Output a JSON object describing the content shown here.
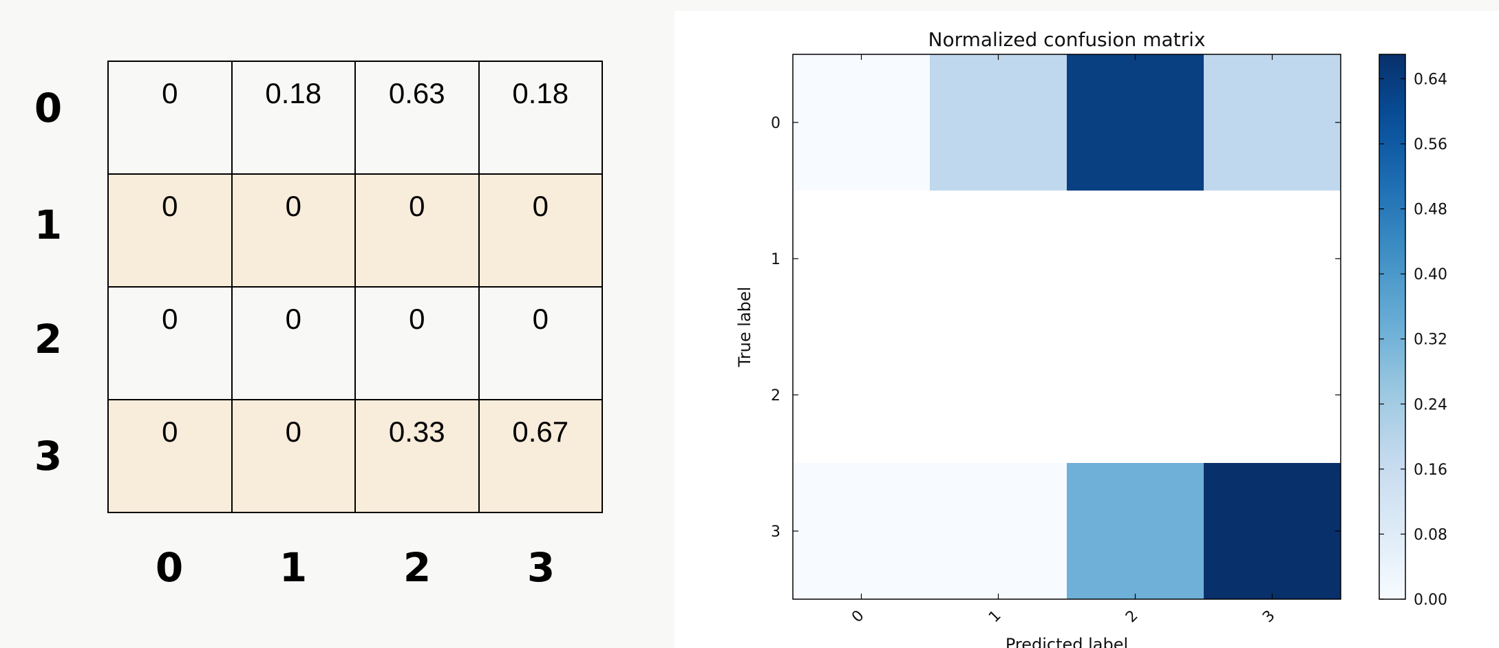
{
  "table": {
    "row_labels": [
      "0",
      "1",
      "2",
      "3"
    ],
    "col_labels": [
      "0",
      "1",
      "2",
      "3"
    ],
    "rows": [
      [
        "0",
        "0.18",
        "0.63",
        "0.18"
      ],
      [
        "0",
        "0",
        "0",
        "0"
      ],
      [
        "0",
        "0",
        "0",
        "0"
      ],
      [
        "0",
        "0",
        "0.33",
        "0.67"
      ]
    ],
    "row_tint_color": "#f8ecda",
    "row_plain_color": "#f8f8f7"
  },
  "chart_data": {
    "type": "heatmap",
    "title": "Normalized confusion matrix",
    "xlabel": "Predicted label",
    "ylabel": "True label",
    "x_categories": [
      "0",
      "1",
      "2",
      "3"
    ],
    "y_categories": [
      "0",
      "1",
      "2",
      "3"
    ],
    "values": [
      [
        0,
        0.18,
        0.63,
        0.18
      ],
      [
        null,
        null,
        null,
        null
      ],
      [
        null,
        null,
        null,
        null
      ],
      [
        0,
        0,
        0.33,
        0.67
      ]
    ],
    "colormap": "Blues",
    "colorbar": {
      "range": [
        0.0,
        0.67
      ],
      "ticks": [
        "0.00",
        "0.08",
        "0.16",
        "0.24",
        "0.32",
        "0.40",
        "0.48",
        "0.56",
        "0.64"
      ]
    },
    "missing_color": "#ffffff"
  }
}
